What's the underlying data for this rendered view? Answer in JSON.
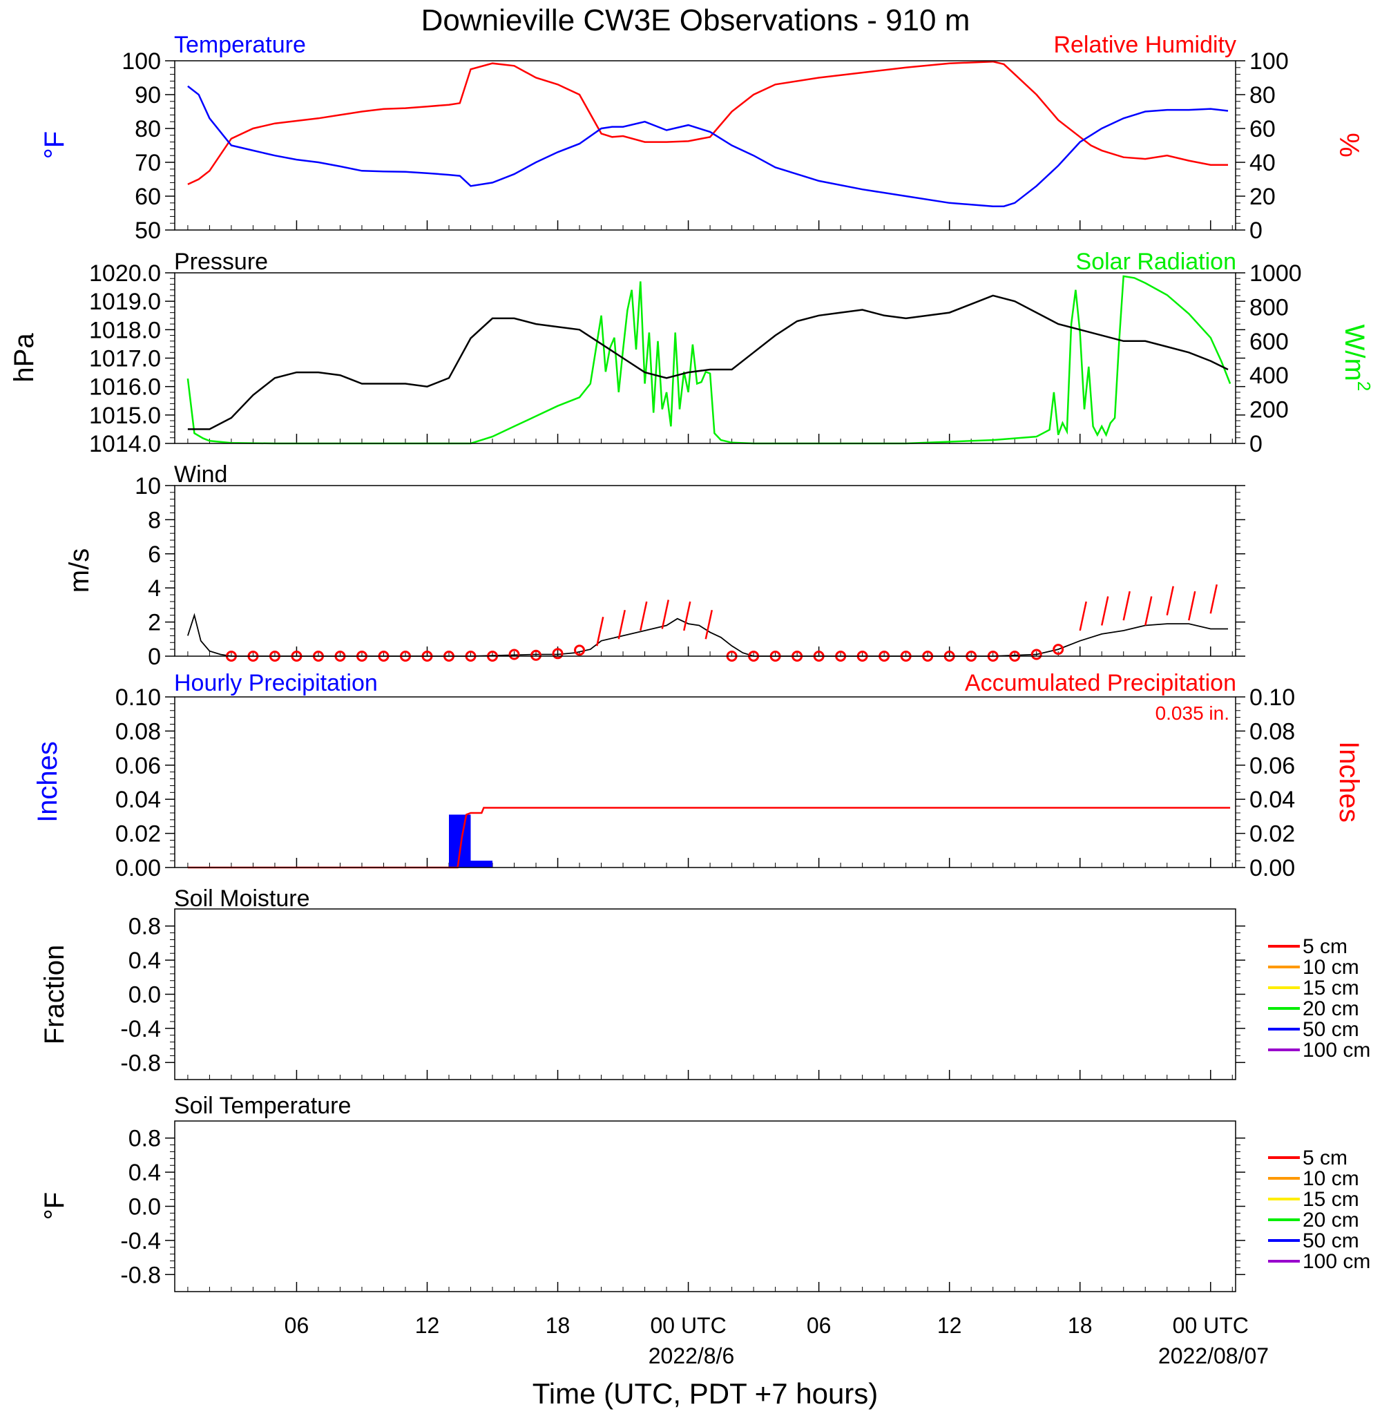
{
  "figure": {
    "title": "Downieville CW3E Observations - 910 m",
    "xlabel": "Time (UTC, PDT +7 hours)",
    "x_ticks": [
      "06",
      "12",
      "18",
      "00 UTC",
      "06",
      "12",
      "18",
      "00 UTC"
    ],
    "x_date_labels": [
      "2022/8/6",
      "2022/08/07"
    ]
  },
  "colors": {
    "temperature": "#0000ff",
    "humidity": "#ff0000",
    "pressure": "#000000",
    "solar": "#00ee00",
    "wind": "#000000",
    "wind_barb": "#ff0000",
    "hourly_precip": "#0000ff",
    "accum_precip": "#ff0000",
    "soil_5": "#ff0000",
    "soil_10": "#ff9900",
    "soil_15": "#ffee00",
    "soil_20": "#00ee00",
    "soil_50": "#0000ff",
    "soil_100": "#9900cc"
  },
  "chart_data": [
    {
      "type": "line",
      "panel": "temperature_humidity",
      "left_title": "Temperature",
      "right_title": "Relative Humidity",
      "ylabel_left": "°F",
      "ylabel_right": "%",
      "ylim_left": [
        50,
        100
      ],
      "ylim_right": [
        0,
        100
      ],
      "yticks_left": [
        "100",
        "90",
        "80",
        "70",
        "60",
        "50"
      ],
      "yticks_right": [
        "100",
        "80",
        "60",
        "40",
        "20",
        "0"
      ],
      "x_hours": [
        1,
        1.5,
        2,
        3,
        4,
        5,
        6,
        7,
        8,
        9,
        10,
        11,
        12,
        13,
        13.5,
        14,
        15,
        16,
        17,
        18,
        19,
        20,
        20.5,
        21,
        22,
        23,
        24,
        25,
        26,
        27,
        28,
        30,
        32,
        34,
        36,
        38,
        38.5,
        39,
        40,
        41,
        42,
        42.5,
        43,
        44,
        45,
        46,
        47,
        48,
        48.8
      ],
      "series": [
        {
          "name": "Temperature",
          "axis": "left",
          "values": [
            92.5,
            90,
            83,
            75,
            73.5,
            72,
            70.8,
            70,
            68.8,
            67.5,
            67.3,
            67.2,
            66.8,
            66.3,
            66,
            63,
            64,
            66.5,
            70,
            73,
            75.5,
            80,
            80.5,
            80.5,
            82,
            79.5,
            81,
            79,
            75,
            72,
            68.5,
            64.5,
            62,
            60,
            58,
            57,
            57,
            58,
            63,
            69,
            76,
            78,
            80,
            83,
            85,
            85.5,
            85.5,
            85.8,
            85.2
          ]
        },
        {
          "name": "Relative Humidity",
          "axis": "right",
          "values": [
            27,
            30,
            35,
            54,
            60,
            63,
            64.5,
            66,
            68,
            70,
            71.5,
            72,
            73,
            74,
            75,
            95,
            98.5,
            97,
            90,
            86,
            80,
            57,
            55,
            55.5,
            52,
            52,
            52.5,
            55,
            70,
            80,
            86,
            90,
            93,
            96,
            98.5,
            99.5,
            98,
            92,
            80,
            65,
            55,
            50,
            47,
            43,
            42,
            44,
            41,
            38.5,
            38.5
          ]
        }
      ]
    },
    {
      "type": "line",
      "panel": "pressure_solar",
      "left_title": "Pressure",
      "right_title": "Solar Radiation",
      "ylabel_left": "hPa",
      "ylabel_right": "W/m",
      "ylabel_right_sup": "2",
      "ylim_left": [
        1014,
        1020
      ],
      "ylim_right": [
        0,
        1000
      ],
      "yticks_left": [
        "1020.0",
        "1019.0",
        "1018.0",
        "1017.0",
        "1016.0",
        "1015.0",
        "1014.0"
      ],
      "yticks_right": [
        "1000",
        "800",
        "600",
        "400",
        "200",
        "0"
      ],
      "series": [
        {
          "name": "Pressure",
          "axis": "left",
          "x_hours": [
            1,
            2,
            3,
            4,
            5,
            6,
            7,
            8,
            9,
            10,
            11,
            12,
            13,
            14,
            15,
            16,
            17,
            18,
            19,
            20,
            21,
            22,
            23,
            24,
            25,
            26,
            27,
            28,
            29,
            30,
            31,
            32,
            33,
            34,
            35,
            36,
            37,
            38,
            39,
            40,
            41,
            42,
            43,
            44,
            45,
            46,
            47,
            48,
            48.8
          ],
          "values": [
            1014.5,
            1014.5,
            1014.9,
            1015.7,
            1016.3,
            1016.5,
            1016.5,
            1016.4,
            1016.1,
            1016.1,
            1016.1,
            1016.0,
            1016.3,
            1017.7,
            1018.4,
            1018.4,
            1018.2,
            1018.1,
            1018.0,
            1017.5,
            1017.0,
            1016.5,
            1016.3,
            1016.5,
            1016.6,
            1016.6,
            1017.2,
            1017.8,
            1018.3,
            1018.5,
            1018.6,
            1018.7,
            1018.5,
            1018.4,
            1018.5,
            1018.6,
            1018.9,
            1019.2,
            1019.0,
            1018.6,
            1018.2,
            1018.0,
            1017.8,
            1017.6,
            1017.6,
            1017.4,
            1017.2,
            1016.9,
            1016.6
          ]
        },
        {
          "name": "Solar Radiation",
          "axis": "right",
          "x_hours": [
            1,
            1.3,
            1.7,
            2,
            3,
            5,
            8,
            12,
            14,
            15,
            16,
            17,
            18,
            19,
            19.5,
            20,
            20.2,
            20.4,
            20.6,
            20.8,
            21,
            21.2,
            21.4,
            21.6,
            21.8,
            22,
            22.2,
            22.4,
            22.6,
            22.8,
            23,
            23.2,
            23.4,
            23.6,
            23.8,
            24,
            24.2,
            24.4,
            24.6,
            24.8,
            25,
            25.2,
            25.5,
            26,
            27,
            30,
            34,
            38,
            40,
            40.3,
            40.6,
            40.8,
            41,
            41.2,
            41.4,
            41.6,
            41.8,
            42,
            42.2,
            42.4,
            42.6,
            42.8,
            43,
            43.2,
            43.4,
            43.6,
            43.8,
            44,
            44.5,
            45,
            46,
            47,
            48,
            48.5,
            48.9
          ],
          "values": [
            380,
            60,
            30,
            15,
            3,
            0,
            0,
            0,
            0,
            40,
            100,
            160,
            220,
            270,
            350,
            750,
            420,
            560,
            620,
            300,
            550,
            780,
            900,
            550,
            950,
            350,
            650,
            180,
            600,
            200,
            300,
            100,
            650,
            200,
            420,
            300,
            580,
            350,
            360,
            420,
            410,
            60,
            20,
            5,
            0,
            0,
            0,
            20,
            40,
            60,
            80,
            300,
            50,
            120,
            70,
            700,
            900,
            650,
            200,
            450,
            100,
            50,
            100,
            50,
            120,
            150,
            600,
            980,
            970,
            940,
            870,
            760,
            620,
            480,
            350
          ],
          "values_note": ""
        }
      ]
    },
    {
      "type": "line",
      "panel": "wind",
      "left_title": "Wind",
      "ylabel_left": "m/s",
      "ylim_left": [
        0,
        10
      ],
      "yticks_left": [
        "10",
        "8",
        "6",
        "4",
        "2",
        "0"
      ],
      "series": [
        {
          "name": "Wind",
          "x_hours": [
            1,
            1.3,
            1.6,
            2,
            2.5,
            3,
            8,
            14,
            17,
            18,
            18.8,
            19.5,
            20,
            21,
            22,
            23,
            23.5,
            24,
            24.5,
            25,
            25.5,
            26,
            26.5,
            27,
            32,
            38,
            40,
            41,
            42,
            43,
            44,
            45,
            46,
            47,
            48,
            48.8
          ],
          "values": [
            1.2,
            2.4,
            0.9,
            0.3,
            0.1,
            0,
            0,
            0,
            0.1,
            0.1,
            0.2,
            0.4,
            0.9,
            1.2,
            1.5,
            1.8,
            2.2,
            1.9,
            1.8,
            1.4,
            1.1,
            0.6,
            0.2,
            0,
            0,
            0,
            0.1,
            0.4,
            0.9,
            1.3,
            1.5,
            1.8,
            1.9,
            1.9,
            1.6,
            1.6
          ]
        }
      ],
      "barb_calm_hours": [
        3,
        4,
        5,
        6,
        7,
        8,
        9,
        10,
        11,
        12,
        13,
        14,
        15,
        16,
        17,
        18,
        19,
        26,
        27,
        28,
        29,
        30,
        31,
        32,
        33,
        34,
        35,
        36,
        37,
        38,
        39,
        40,
        41
      ],
      "barb_calm_speeds": [
        0,
        0,
        0,
        0,
        0,
        0,
        0,
        0,
        0,
        0,
        0,
        0,
        0,
        0.1,
        0.05,
        0.15,
        0.35,
        0,
        0,
        0,
        0,
        0,
        0,
        0,
        0,
        0,
        0,
        0,
        0,
        0,
        0,
        0.1,
        0.4
      ],
      "barb_staff_hours": [
        19.8,
        20.8,
        21.8,
        22.8,
        23.8,
        24.8,
        42,
        43,
        44,
        45,
        46,
        47,
        48
      ],
      "barb_staff_speeds": [
        0.6,
        1.0,
        1.5,
        1.6,
        1.5,
        1.0,
        1.5,
        1.8,
        2.1,
        1.8,
        2.4,
        2.1,
        2.5
      ]
    },
    {
      "type": "bar",
      "panel": "precipitation",
      "left_title": "Hourly Precipitation",
      "right_title": "Accumulated Precipitation",
      "total_label": "0.035 in.",
      "ylabel_left": "Inches",
      "ylabel_right": "Inches",
      "ylim_left": [
        0,
        0.1
      ],
      "ylim_right": [
        0,
        0.1
      ],
      "yticks_left": [
        "0.10",
        "0.08",
        "0.06",
        "0.04",
        "0.02",
        "0.00"
      ],
      "yticks_right": [
        "0.10",
        "0.08",
        "0.06",
        "0.04",
        "0.02",
        "0.00"
      ],
      "hourly_start_hours": [
        13,
        14
      ],
      "hourly_values": [
        0.031,
        0.004
      ],
      "accum_x_hours": [
        1,
        13.4,
        13.6,
        13.8,
        14.0,
        14.5,
        14.6,
        48.9
      ],
      "accum_values": [
        0,
        0,
        0.018,
        0.031,
        0.032,
        0.032,
        0.035,
        0.035
      ]
    },
    {
      "type": "line",
      "panel": "soil_moisture",
      "left_title": "Soil Moisture",
      "ylabel_left": "Fraction",
      "ylim_left": [
        -1,
        1
      ],
      "yticks_left": [
        "0.8",
        "0.4",
        "0.0",
        "-0.4",
        "-0.8"
      ],
      "legend_placement": "right",
      "legend": [
        "5 cm",
        "10 cm",
        "15 cm",
        "20 cm",
        "50 cm",
        "100 cm"
      ]
    },
    {
      "type": "line",
      "panel": "soil_temperature",
      "left_title": "Soil Temperature",
      "ylabel_left": "°F",
      "ylim_left": [
        -1,
        1
      ],
      "yticks_left": [
        "0.8",
        "0.4",
        "0.0",
        "-0.4",
        "-0.8"
      ],
      "legend_placement": "right",
      "legend": [
        "5 cm",
        "10 cm",
        "15 cm",
        "20 cm",
        "50 cm",
        "100 cm"
      ]
    }
  ]
}
